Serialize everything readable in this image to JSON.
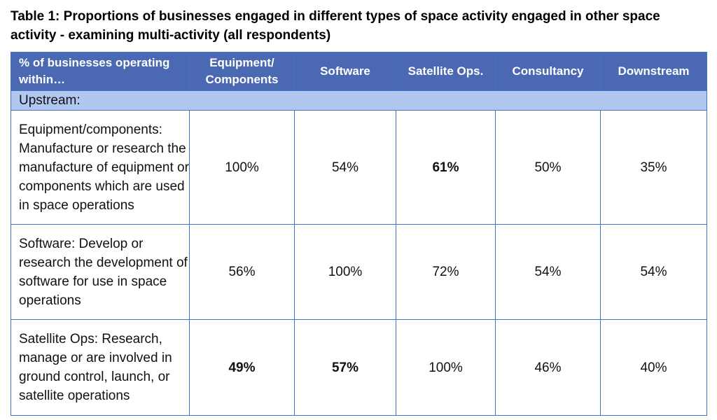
{
  "title": "Table 1: Proportions of businesses engaged in different types of space activity engaged in other space activity - examining multi-activity (all respondents)",
  "table": {
    "header": [
      "% of businesses operating within…",
      "Equipment/ Components",
      "Software",
      "Satellite Ops.",
      "Consultancy",
      "Downstream"
    ],
    "section": "Upstream:",
    "rows": [
      [
        "Equipment/components: Manufacture or research the manufacture of equipment or components which are used in space operations",
        "100%",
        "54%",
        "61%",
        "50%",
        "35%"
      ],
      [
        "Software: Develop or research the development of software for use in space operations",
        "56%",
        "100%",
        "72%",
        "54%",
        "54%"
      ],
      [
        "Satellite Ops: Research, manage or are involved in ground control, launch, or satellite operations",
        "49%",
        "57%",
        "100%",
        "46%",
        "40%"
      ]
    ]
  }
}
